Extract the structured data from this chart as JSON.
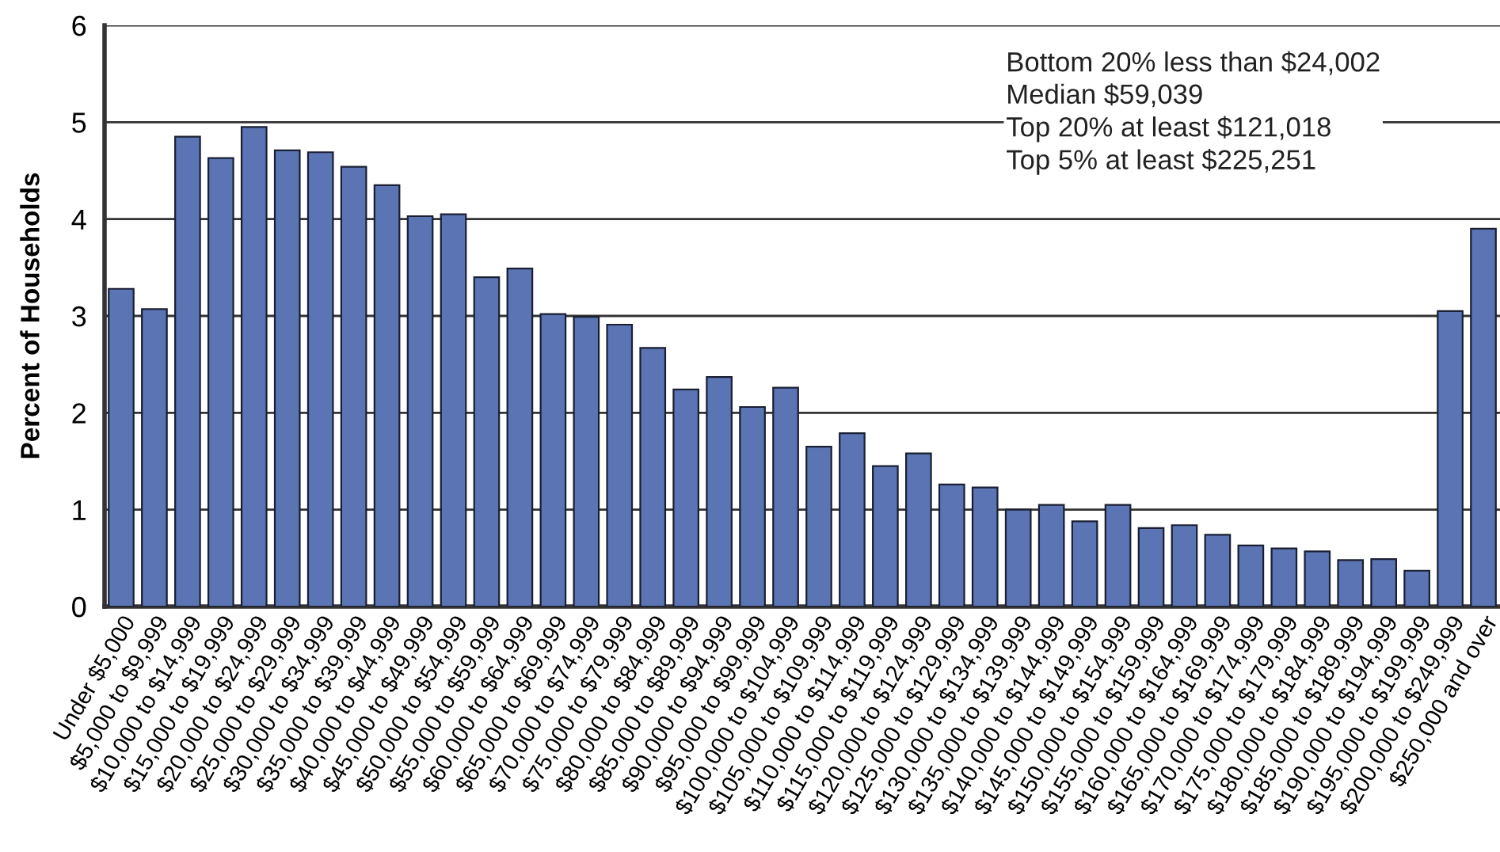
{
  "chart_data": {
    "type": "bar",
    "ylabel": "Percent of Households",
    "categories": [
      "Under $5,000",
      "$5,000 to $9,999",
      "$10,000 to $14,999",
      "$15,000 to $19,999",
      "$20,000 to $24,999",
      "$25,000 to $29,999",
      "$30,000 to $34,999",
      "$35,000 to $39,999",
      "$40,000 to $44,999",
      "$45,000 to $49,999",
      "$50,000 to $54,999",
      "$55,000 to $59,999",
      "$60,000 to $64,999",
      "$65,000 to $69,999",
      "$70,000 to $74,999",
      "$75,000 to $79,999",
      "$80,000 to $84,999",
      "$85,000 to $89,999",
      "$90,000 to $94,999",
      "$95,000 to $99,999",
      "$100,000 to $104,999",
      "$105,000 to $109,999",
      "$110,000 to $114,999",
      "$115,000 to $119,999",
      "$120,000 to $124,999",
      "$125,000 to $129,999",
      "$130,000 to $134,999",
      "$135,000 to $139,999",
      "$140,000 to $144,999",
      "$145,000 to $149,999",
      "$150,000 to $154,999",
      "$155,000 to $159,999",
      "$160,000 to $164,999",
      "$165,000 to $169,999",
      "$170,000 to $174,999",
      "$175,000 to $179,999",
      "$180,000 to $184,999",
      "$185,000 to $189,999",
      "$190,000 to $194,999",
      "$195,000 to $199,999",
      "$200,000 to $249,999",
      "$250,000 and over"
    ],
    "values": [
      3.28,
      3.07,
      4.85,
      4.63,
      4.95,
      4.71,
      4.69,
      4.54,
      4.35,
      4.03,
      4.05,
      3.4,
      3.49,
      3.02,
      2.99,
      2.91,
      2.67,
      2.24,
      2.37,
      2.06,
      2.26,
      1.65,
      1.79,
      1.45,
      1.58,
      1.26,
      1.23,
      1.0,
      1.05,
      0.88,
      1.05,
      0.81,
      0.84,
      0.74,
      0.63,
      0.6,
      0.57,
      0.48,
      0.49,
      0.37,
      3.05,
      3.9
    ],
    "color": "#5b74b3",
    "ylim": [
      0,
      6
    ],
    "yticks": [
      0,
      1,
      2,
      3,
      4,
      5,
      6
    ],
    "grid": "y",
    "annotations": [
      "Bottom 20% less than $24,002",
      "Median $59,039",
      "Top 20% at least $121,018",
      "Top 5% at least $225,251"
    ]
  }
}
